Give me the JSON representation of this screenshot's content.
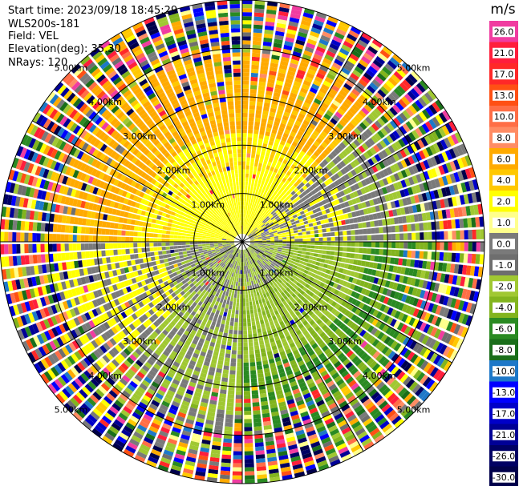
{
  "info": {
    "start_time": "Start time: 2023/09/18 18:45:29",
    "instrument": "WLS200s-181",
    "field": "Field: VEL",
    "elevation": "Elevation(deg): 35.30",
    "nrays": "NRays: 120"
  },
  "chart_data": {
    "type": "heatmap",
    "subtype": "polar-ppi",
    "field": "VEL",
    "nrays": 120,
    "max_range_km": 5.0,
    "range_rings_km": [
      1,
      2,
      3,
      4,
      5
    ],
    "ring_label_text": [
      "1.00km",
      "2.00km",
      "3.00km",
      "4.00km",
      "5.00km"
    ],
    "colorbar": {
      "unit": "m/s",
      "ticks": [
        "26.0",
        "21.0",
        "17.0",
        "13.0",
        "10.0",
        "8.0",
        "6.0",
        "4.0",
        "2.0",
        "1.0",
        "0.0",
        "-1.0",
        "-2.0",
        "-4.0",
        "-6.0",
        "-8.0",
        "-10.0",
        "-13.0",
        "-17.0",
        "-21.0",
        "-26.0",
        "-30.0"
      ],
      "colors": [
        "#f03ca0",
        "#ff1e3c",
        "#ff2828",
        "#ff5014",
        "#ff6e46",
        "#ff8c64",
        "#ffaa00",
        "#ffc800",
        "#ffff00",
        "#ffff8c",
        "#7a7a7a",
        "#6e6e6e",
        "#a0c832",
        "#82b41e",
        "#2a8a22",
        "#1a6e1a",
        "#1e78c8",
        "#0000ff",
        "#0000c8",
        "#000096",
        "#000064",
        "#00004b"
      ]
    },
    "approach_velocity_pattern": "north sector positive (yellow/orange), south-east sector negative (greens), noisy beyond ~4 km"
  }
}
